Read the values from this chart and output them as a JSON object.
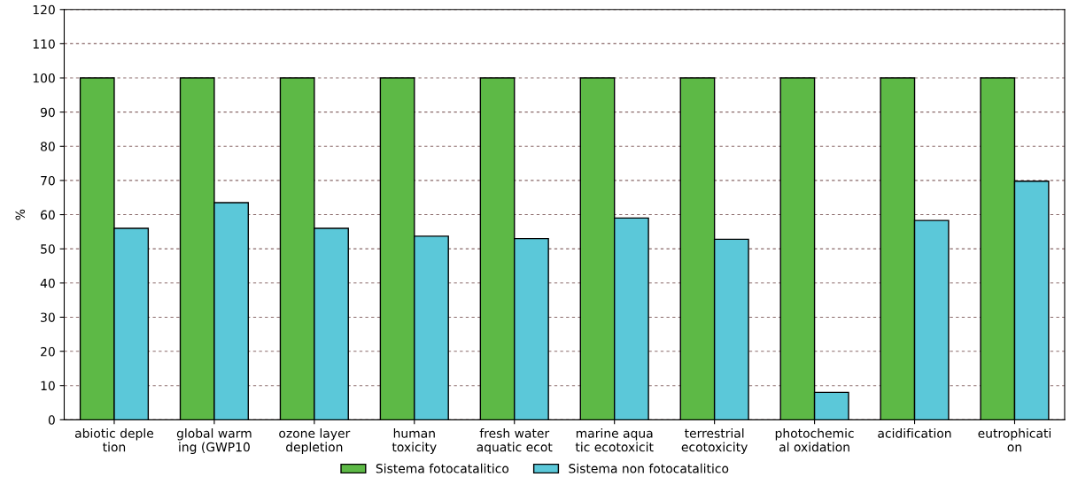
{
  "chart_data": {
    "type": "bar",
    "ylabel": "%",
    "categories": [
      "abiotic deple\ntion",
      "global warm\ning (GWP10",
      "ozone layer\ndepletion",
      "human\ntoxicity",
      "fresh water\naquatic ecot",
      "marine aqua\ntic ecotoxicit",
      "terrestrial\necotoxicity",
      "photochemic\nal oxidation",
      "acidification",
      "eutrophicati\non"
    ],
    "series": [
      {
        "name": "Sistema fotocatalitico",
        "color": "#5db946",
        "values": [
          100,
          100,
          100,
          100,
          100,
          100,
          100,
          100,
          100,
          100
        ]
      },
      {
        "name": "Sistema non fotocatalitico",
        "color": "#5bc8d9",
        "values": [
          56,
          63.5,
          56,
          53.7,
          53,
          59,
          52.8,
          8,
          58.3,
          69.8
        ]
      }
    ],
    "ylim": [
      0,
      120
    ],
    "yticks": [
      0,
      10,
      20,
      30,
      40,
      50,
      60,
      70,
      80,
      90,
      100,
      110,
      120
    ],
    "grid": "y",
    "legend": "bottom"
  }
}
